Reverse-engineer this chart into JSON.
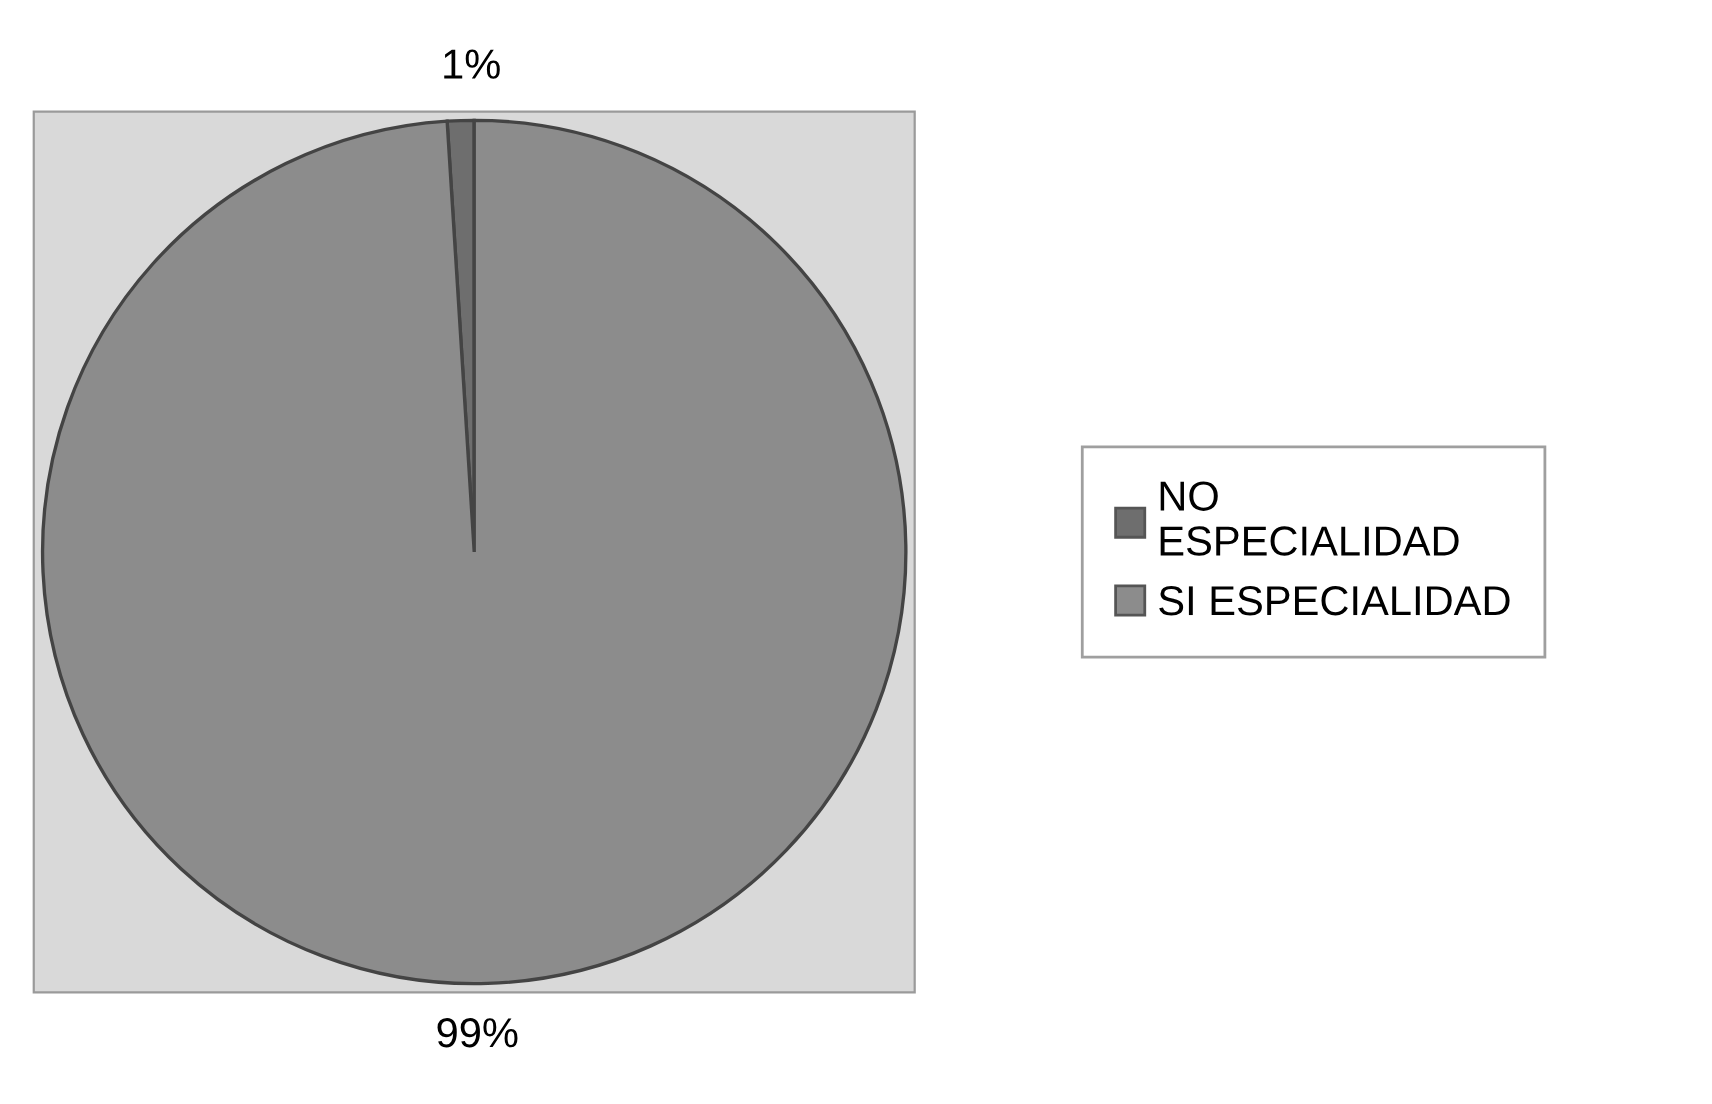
{
  "chart_data": {
    "type": "pie",
    "categories": [
      "NO ESPECIALIDAD",
      "SI ESPECIALIDAD"
    ],
    "values": [
      1,
      99
    ],
    "colors": [
      "#6e6e6e",
      "#8c8c8c"
    ],
    "value_labels": [
      "1%",
      "99%"
    ],
    "legend": "right"
  }
}
